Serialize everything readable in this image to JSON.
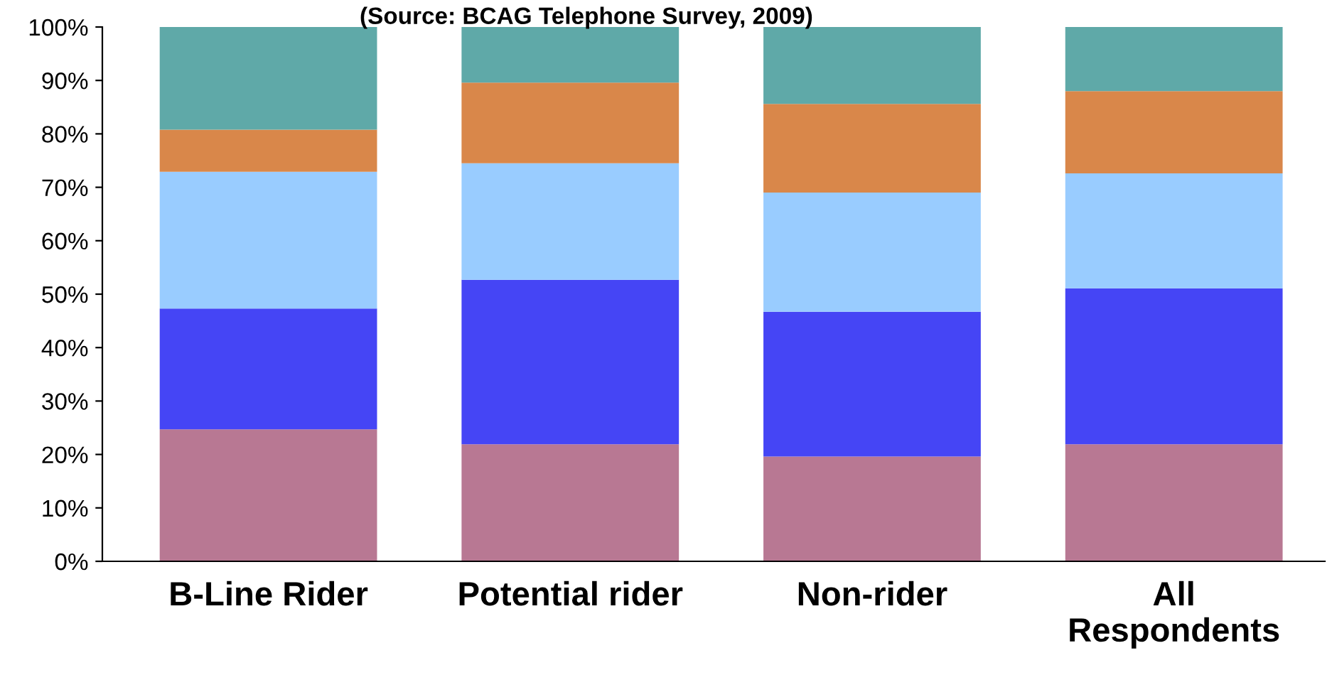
{
  "chart_data": {
    "type": "bar",
    "stacked": true,
    "subtitle": "(Source: BCAG Telephone Survey, 2009)",
    "categories": [
      "B-Line Rider",
      "Potential rider",
      "Non-rider",
      "All\nRespondents"
    ],
    "series": [
      {
        "color": "#b87893",
        "values": [
          24.7,
          21.9,
          19.6,
          21.9
        ]
      },
      {
        "color": "#4545f5",
        "values": [
          22.6,
          30.8,
          27.1,
          29.2
        ]
      },
      {
        "color": "#99ccff",
        "values": [
          25.6,
          21.8,
          22.3,
          21.5
        ]
      },
      {
        "color": "#d9874a",
        "values": [
          7.9,
          15.1,
          16.6,
          15.4
        ]
      },
      {
        "color": "#5fa9a8",
        "values": [
          19.2,
          10.4,
          14.4,
          12.0
        ]
      }
    ],
    "ylim": [
      0,
      100
    ],
    "yticks": [
      {
        "value": 0,
        "label": "0%"
      },
      {
        "value": 10,
        "label": "10%"
      },
      {
        "value": 20,
        "label": "20%"
      },
      {
        "value": 30,
        "label": "30%"
      },
      {
        "value": 40,
        "label": "40%"
      },
      {
        "value": 50,
        "label": "50%"
      },
      {
        "value": 60,
        "label": "60%"
      },
      {
        "value": 70,
        "label": "70%"
      },
      {
        "value": 80,
        "label": "80%"
      },
      {
        "value": 90,
        "label": "90%"
      },
      {
        "value": 100,
        "label": "100%"
      }
    ],
    "grid": false
  }
}
